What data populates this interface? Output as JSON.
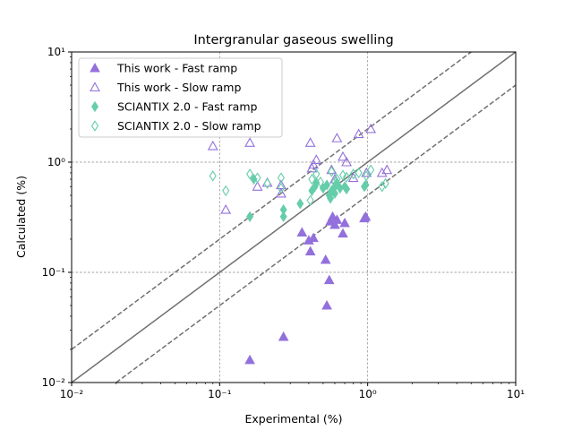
{
  "chart_data": {
    "type": "scatter",
    "title": "Intergranular gaseous swelling",
    "xlabel": "Experimental (%)",
    "ylabel": "Calculated (%)",
    "xscale": "log",
    "yscale": "log",
    "xlim": [
      0.01,
      10
    ],
    "ylim": [
      0.01,
      10
    ],
    "x_tick_labels": [
      "10⁻²",
      "10⁻¹",
      "10⁰",
      "10¹"
    ],
    "y_tick_labels": [
      "10⁻²",
      "10⁻¹",
      "10⁰",
      "10¹"
    ],
    "grid": "major dashed",
    "legend_position": "top-left",
    "reference_lines": [
      {
        "style": "solid",
        "factor": 1
      },
      {
        "style": "dashed",
        "factor": 2
      },
      {
        "style": "dashed",
        "factor": 0.5
      }
    ],
    "series": [
      {
        "name": "This work - Fast ramp",
        "marker": "triangle",
        "filled": true,
        "color": "#9370db",
        "points": [
          [
            0.16,
            0.016
          ],
          [
            0.27,
            0.026
          ],
          [
            0.36,
            0.23
          ],
          [
            0.4,
            0.195
          ],
          [
            0.41,
            0.155
          ],
          [
            0.43,
            0.205
          ],
          [
            0.52,
            0.13
          ],
          [
            0.53,
            0.05
          ],
          [
            0.55,
            0.085
          ],
          [
            0.56,
            0.29
          ],
          [
            0.58,
            0.32
          ],
          [
            0.6,
            0.27
          ],
          [
            0.62,
            0.3
          ],
          [
            0.68,
            0.225
          ],
          [
            0.7,
            0.28
          ],
          [
            0.95,
            0.31
          ],
          [
            0.97,
            0.32
          ]
        ]
      },
      {
        "name": "This work - Slow ramp",
        "marker": "triangle",
        "filled": false,
        "color": "#9370db",
        "points": [
          [
            0.09,
            1.4
          ],
          [
            0.11,
            0.37
          ],
          [
            0.16,
            1.5
          ],
          [
            0.18,
            0.6
          ],
          [
            0.21,
            0.65
          ],
          [
            0.26,
            0.52
          ],
          [
            0.26,
            0.62
          ],
          [
            0.41,
            1.5
          ],
          [
            0.42,
            0.88
          ],
          [
            0.43,
            0.95
          ],
          [
            0.45,
            1.05
          ],
          [
            0.57,
            0.85
          ],
          [
            0.6,
            0.7
          ],
          [
            0.62,
            1.65
          ],
          [
            0.68,
            1.12
          ],
          [
            0.72,
            1.0
          ],
          [
            0.8,
            0.72
          ],
          [
            0.87,
            1.8
          ],
          [
            0.98,
            0.8
          ],
          [
            1.05,
            2.0
          ],
          [
            1.25,
            0.8
          ],
          [
            1.35,
            0.85
          ]
        ]
      },
      {
        "name": "SCIANTIX 2.0 - Fast ramp",
        "marker": "diamond",
        "filled": true,
        "color": "#66cdaa",
        "points": [
          [
            0.16,
            0.32
          ],
          [
            0.17,
            0.7
          ],
          [
            0.27,
            0.37
          ],
          [
            0.27,
            0.32
          ],
          [
            0.35,
            0.42
          ],
          [
            0.42,
            0.55
          ],
          [
            0.44,
            0.6
          ],
          [
            0.45,
            0.65
          ],
          [
            0.5,
            0.58
          ],
          [
            0.53,
            0.62
          ],
          [
            0.55,
            0.5
          ],
          [
            0.56,
            0.47
          ],
          [
            0.57,
            0.55
          ],
          [
            0.6,
            0.52
          ],
          [
            0.6,
            0.6
          ],
          [
            0.62,
            0.65
          ],
          [
            0.65,
            0.58
          ],
          [
            0.7,
            0.6
          ],
          [
            0.72,
            0.57
          ],
          [
            0.95,
            0.6
          ],
          [
            0.97,
            0.62
          ]
        ]
      },
      {
        "name": "SCIANTIX 2.0 - Slow ramp",
        "marker": "diamond",
        "filled": false,
        "color": "#66cdaa",
        "points": [
          [
            0.09,
            0.75
          ],
          [
            0.11,
            0.55
          ],
          [
            0.16,
            0.78
          ],
          [
            0.18,
            0.72
          ],
          [
            0.21,
            0.64
          ],
          [
            0.26,
            0.72
          ],
          [
            0.26,
            0.58
          ],
          [
            0.41,
            0.45
          ],
          [
            0.42,
            0.7
          ],
          [
            0.45,
            0.78
          ],
          [
            0.48,
            0.66
          ],
          [
            0.57,
            0.82
          ],
          [
            0.6,
            0.66
          ],
          [
            0.62,
            0.7
          ],
          [
            0.68,
            0.76
          ],
          [
            0.72,
            0.73
          ],
          [
            0.8,
            0.78
          ],
          [
            0.87,
            0.8
          ],
          [
            0.98,
            0.75
          ],
          [
            1.05,
            0.85
          ],
          [
            1.25,
            0.6
          ],
          [
            1.32,
            0.64
          ]
        ]
      }
    ]
  }
}
